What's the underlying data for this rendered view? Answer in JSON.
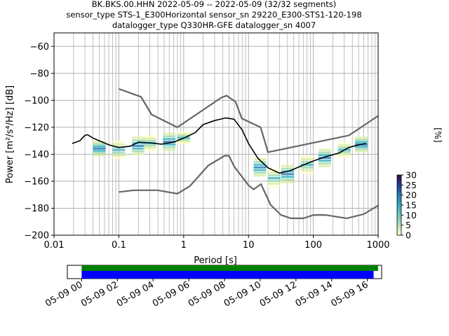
{
  "chart_data": {
    "type": "heatmap",
    "title_lines": [
      "BK.BKS.00.HHN   2022-05-09 -- 2022-05-09  (32/32 segments)",
      "sensor_type STS-1_E300Horizontal sensor_sn 29220_E300-STS1-120-198",
      "datalogger_type Q330HR-GFE datalogger_sn 4007"
    ],
    "xlabel": "Period [s]",
    "ylabel": "Power [m²/s⁴/Hz] [dB]",
    "x_scale": "log",
    "xlim": [
      0.01,
      1000
    ],
    "ylim": [
      -200,
      -50
    ],
    "x_ticks": [
      {
        "value": 0.01,
        "label": "0.01"
      },
      {
        "value": 0.1,
        "label": "0.1"
      },
      {
        "value": 1,
        "label": "1"
      },
      {
        "value": 10,
        "label": "10"
      },
      {
        "value": 100,
        "label": "100"
      },
      {
        "value": 1000,
        "label": "1000"
      }
    ],
    "y_ticks": [
      {
        "value": -60,
        "label": "−60"
      },
      {
        "value": -80,
        "label": "−80"
      },
      {
        "value": -100,
        "label": "−100"
      },
      {
        "value": -120,
        "label": "−120"
      },
      {
        "value": -140,
        "label": "−140"
      },
      {
        "value": -160,
        "label": "−160"
      },
      {
        "value": -180,
        "label": "−180"
      },
      {
        "value": -200,
        "label": "−200"
      }
    ],
    "grid": true,
    "colorbar": {
      "label": "[%]",
      "range": [
        0,
        30
      ],
      "ticks": [
        "0",
        "5",
        "10",
        "15",
        "20",
        "25",
        "30"
      ],
      "colors": [
        "#ffffcc",
        "#a1dab4",
        "#41b6c4",
        "#2c7fb8",
        "#253494",
        "#2b0b3f"
      ]
    },
    "noise_model_high": [
      [
        0.1,
        -91.5
      ],
      [
        0.22,
        -97.4
      ],
      [
        0.32,
        -110.5
      ],
      [
        0.8,
        -120
      ],
      [
        3.8,
        -98
      ],
      [
        4.6,
        -96.5
      ],
      [
        6.3,
        -101
      ],
      [
        7.9,
        -113.5
      ],
      [
        15.4,
        -120
      ],
      [
        20,
        -138.5
      ],
      [
        354.8,
        -126
      ],
      [
        1000,
        -111.5
      ]
    ],
    "noise_model_low": [
      [
        0.1,
        -168
      ],
      [
        0.17,
        -166.7
      ],
      [
        0.4,
        -166.7
      ],
      [
        0.8,
        -169.2
      ],
      [
        1.24,
        -163.7
      ],
      [
        2.4,
        -148.3
      ],
      [
        4.3,
        -141.1
      ],
      [
        5,
        -141.1
      ],
      [
        6,
        -149
      ],
      [
        10,
        -163
      ],
      [
        12,
        -166
      ],
      [
        15.6,
        -162.1
      ],
      [
        21.9,
        -177.5
      ],
      [
        31.6,
        -185
      ],
      [
        45,
        -187.5
      ],
      [
        70,
        -187.5
      ],
      [
        101,
        -185
      ],
      [
        154,
        -185
      ],
      [
        328,
        -187.5
      ],
      [
        600,
        -184.4
      ],
      [
        1000,
        -178
      ]
    ],
    "mode_curve": [
      [
        0.019,
        -132
      ],
      [
        0.025,
        -130
      ],
      [
        0.03,
        -126
      ],
      [
        0.033,
        -125.5
      ],
      [
        0.04,
        -128
      ],
      [
        0.05,
        -130
      ],
      [
        0.07,
        -133
      ],
      [
        0.1,
        -135
      ],
      [
        0.15,
        -134
      ],
      [
        0.2,
        -131
      ],
      [
        0.3,
        -131.5
      ],
      [
        0.45,
        -132.5
      ],
      [
        0.7,
        -131
      ],
      [
        1.0,
        -128
      ],
      [
        1.5,
        -124
      ],
      [
        2.0,
        -118
      ],
      [
        3.0,
        -115
      ],
      [
        4.5,
        -113
      ],
      [
        6.0,
        -114
      ],
      [
        8.0,
        -122
      ],
      [
        10,
        -132
      ],
      [
        14,
        -143
      ],
      [
        20,
        -150
      ],
      [
        30,
        -154
      ],
      [
        45,
        -152
      ],
      [
        70,
        -148
      ],
      [
        100,
        -145
      ],
      [
        150,
        -142
      ],
      [
        250,
        -139
      ],
      [
        350,
        -135
      ],
      [
        500,
        -133
      ],
      [
        650,
        -132
      ]
    ],
    "density": [
      {
        "x": 0.05,
        "y": -136,
        "spread": 5
      },
      {
        "x": 0.1,
        "y": -137,
        "spread": 6
      },
      {
        "x": 0.2,
        "y": -134,
        "spread": 6
      },
      {
        "x": 0.3,
        "y": -132,
        "spread": 5
      },
      {
        "x": 0.6,
        "y": -131,
        "spread": 6
      },
      {
        "x": 1.0,
        "y": -128,
        "spread": 4
      },
      {
        "x": 15,
        "y": -150,
        "spread": 6
      },
      {
        "x": 25,
        "y": -158,
        "spread": 6
      },
      {
        "x": 40,
        "y": -155,
        "spread": 6
      },
      {
        "x": 80,
        "y": -148,
        "spread": 6
      },
      {
        "x": 150,
        "y": -143,
        "spread": 6
      },
      {
        "x": 300,
        "y": -137,
        "spread": 5
      },
      {
        "x": 550,
        "y": -133,
        "spread": 5
      }
    ],
    "timeline": {
      "tick_labels": [
        "05-09 00",
        "05-09 02",
        "05-09 04",
        "05-09 06",
        "05-09 08",
        "05-09 10",
        "05-09 12",
        "05-09 14",
        "05-09 16"
      ],
      "range_hours": [
        -0.8,
        16.8
      ],
      "green_bar_hours": [
        0.0,
        16.6
      ],
      "blue_bar_hours": [
        0.0,
        16.35
      ],
      "colors": {
        "green": "#008000",
        "blue": "#0000ff"
      }
    }
  }
}
